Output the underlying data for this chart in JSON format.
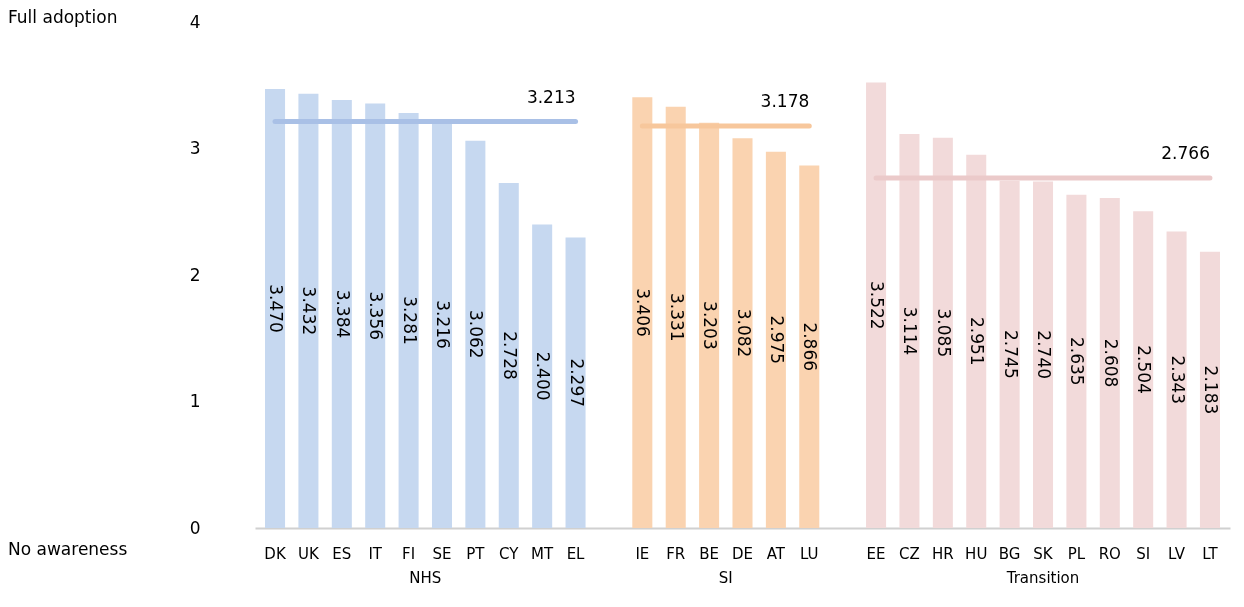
{
  "chart_data": {
    "type": "bar",
    "categories": [
      "DK",
      "UK",
      "ES",
      "IT",
      "FI",
      "SE",
      "PT",
      "CY",
      "MT",
      "EL",
      null,
      "IE",
      "FR",
      "BE",
      "DE",
      "AT",
      "LU",
      null,
      "EE",
      "CZ",
      "HR",
      "HU",
      "BG",
      "SK",
      "PL",
      "RO",
      "SI",
      "LV",
      "LT"
    ],
    "ylim": [
      0,
      4
    ],
    "yticks": [
      0,
      1,
      2,
      3,
      4
    ],
    "grid": false,
    "annotations": [
      "Full adoption",
      "No awareness"
    ],
    "series": [
      {
        "name": "NHS",
        "color": "#c6d8f0",
        "values": [
          3.47,
          3.432,
          3.384,
          3.356,
          3.281,
          3.216,
          3.062,
          2.728,
          2.4,
          2.297,
          null,
          null,
          null,
          null,
          null,
          null,
          null,
          null,
          null,
          null,
          null,
          null,
          null,
          null,
          null,
          null,
          null,
          null,
          null
        ],
        "value_labels": [
          "3.470",
          "3.432",
          "3.384",
          "3.356",
          "3.281",
          "3.216",
          "3.062",
          "2.728",
          "2.400",
          "2.297",
          null,
          null,
          null,
          null,
          null,
          null,
          null,
          null,
          null,
          null,
          null,
          null,
          null,
          null,
          null,
          null,
          null,
          null,
          null
        ]
      },
      {
        "name": "SI",
        "color": "#fad3b0",
        "values": [
          null,
          null,
          null,
          null,
          null,
          null,
          null,
          null,
          null,
          null,
          null,
          3.406,
          3.331,
          3.203,
          3.082,
          2.975,
          2.866,
          null,
          null,
          null,
          null,
          null,
          null,
          null,
          null,
          null,
          null,
          null,
          null
        ],
        "value_labels": [
          null,
          null,
          null,
          null,
          null,
          null,
          null,
          null,
          null,
          null,
          null,
          "3.406",
          "3.331",
          "3.203",
          "3.082",
          "2.975",
          "2.866",
          null,
          null,
          null,
          null,
          null,
          null,
          null,
          null,
          null,
          null,
          null,
          null
        ]
      },
      {
        "name": "Transition",
        "color": "#f2dada",
        "values": [
          null,
          null,
          null,
          null,
          null,
          null,
          null,
          null,
          null,
          null,
          null,
          null,
          null,
          null,
          null,
          null,
          null,
          null,
          3.522,
          3.114,
          3.085,
          2.951,
          2.745,
          2.74,
          2.635,
          2.608,
          2.504,
          2.343,
          2.183
        ],
        "value_labels": [
          null,
          null,
          null,
          null,
          null,
          null,
          null,
          null,
          null,
          null,
          null,
          null,
          null,
          null,
          null,
          null,
          null,
          null,
          "3.522",
          "3.114",
          "3.085",
          "2.951",
          "2.745",
          "2.740",
          "2.635",
          "2.608",
          "2.504",
          "2.343",
          "2.183"
        ]
      },
      {
        "type": "line",
        "color": "#a9c0e6",
        "values": [
          3.213,
          3.213,
          3.213,
          3.213,
          3.213,
          3.213,
          3.213,
          3.213,
          3.213,
          3.213,
          null,
          null,
          null,
          null,
          null,
          null,
          null,
          null,
          null,
          null,
          null,
          null,
          null,
          null,
          null,
          null,
          null,
          null,
          null
        ],
        "value_labels": [
          null,
          null,
          null,
          null,
          null,
          null,
          null,
          null,
          null,
          "3.213",
          null,
          null,
          null,
          null,
          null,
          null,
          null,
          null,
          null,
          null,
          null,
          null,
          null,
          null,
          null,
          null,
          null,
          null,
          null
        ]
      },
      {
        "type": "line",
        "color": "#f7c79c",
        "values": [
          null,
          null,
          null,
          null,
          null,
          null,
          null,
          null,
          null,
          null,
          null,
          3.178,
          3.178,
          3.178,
          3.178,
          3.178,
          3.178,
          null,
          null,
          null,
          null,
          null,
          null,
          null,
          null,
          null,
          null,
          null,
          null
        ],
        "value_labels": [
          null,
          null,
          null,
          null,
          null,
          null,
          null,
          null,
          null,
          null,
          null,
          null,
          null,
          null,
          null,
          null,
          "3.178",
          null,
          null,
          null,
          null,
          null,
          null,
          null,
          null,
          null,
          null,
          null,
          null
        ]
      },
      {
        "type": "line",
        "color": "#ebcaca",
        "values": [
          null,
          null,
          null,
          null,
          null,
          null,
          null,
          null,
          null,
          null,
          null,
          null,
          null,
          null,
          null,
          null,
          null,
          null,
          2.766,
          2.766,
          2.766,
          2.766,
          2.766,
          2.766,
          2.766,
          2.766,
          2.766,
          2.766,
          2.766
        ],
        "value_labels": [
          null,
          null,
          null,
          null,
          null,
          null,
          null,
          null,
          null,
          null,
          null,
          null,
          null,
          null,
          null,
          null,
          null,
          null,
          null,
          null,
          null,
          null,
          null,
          null,
          null,
          null,
          null,
          null,
          "2.766"
        ]
      }
    ]
  }
}
